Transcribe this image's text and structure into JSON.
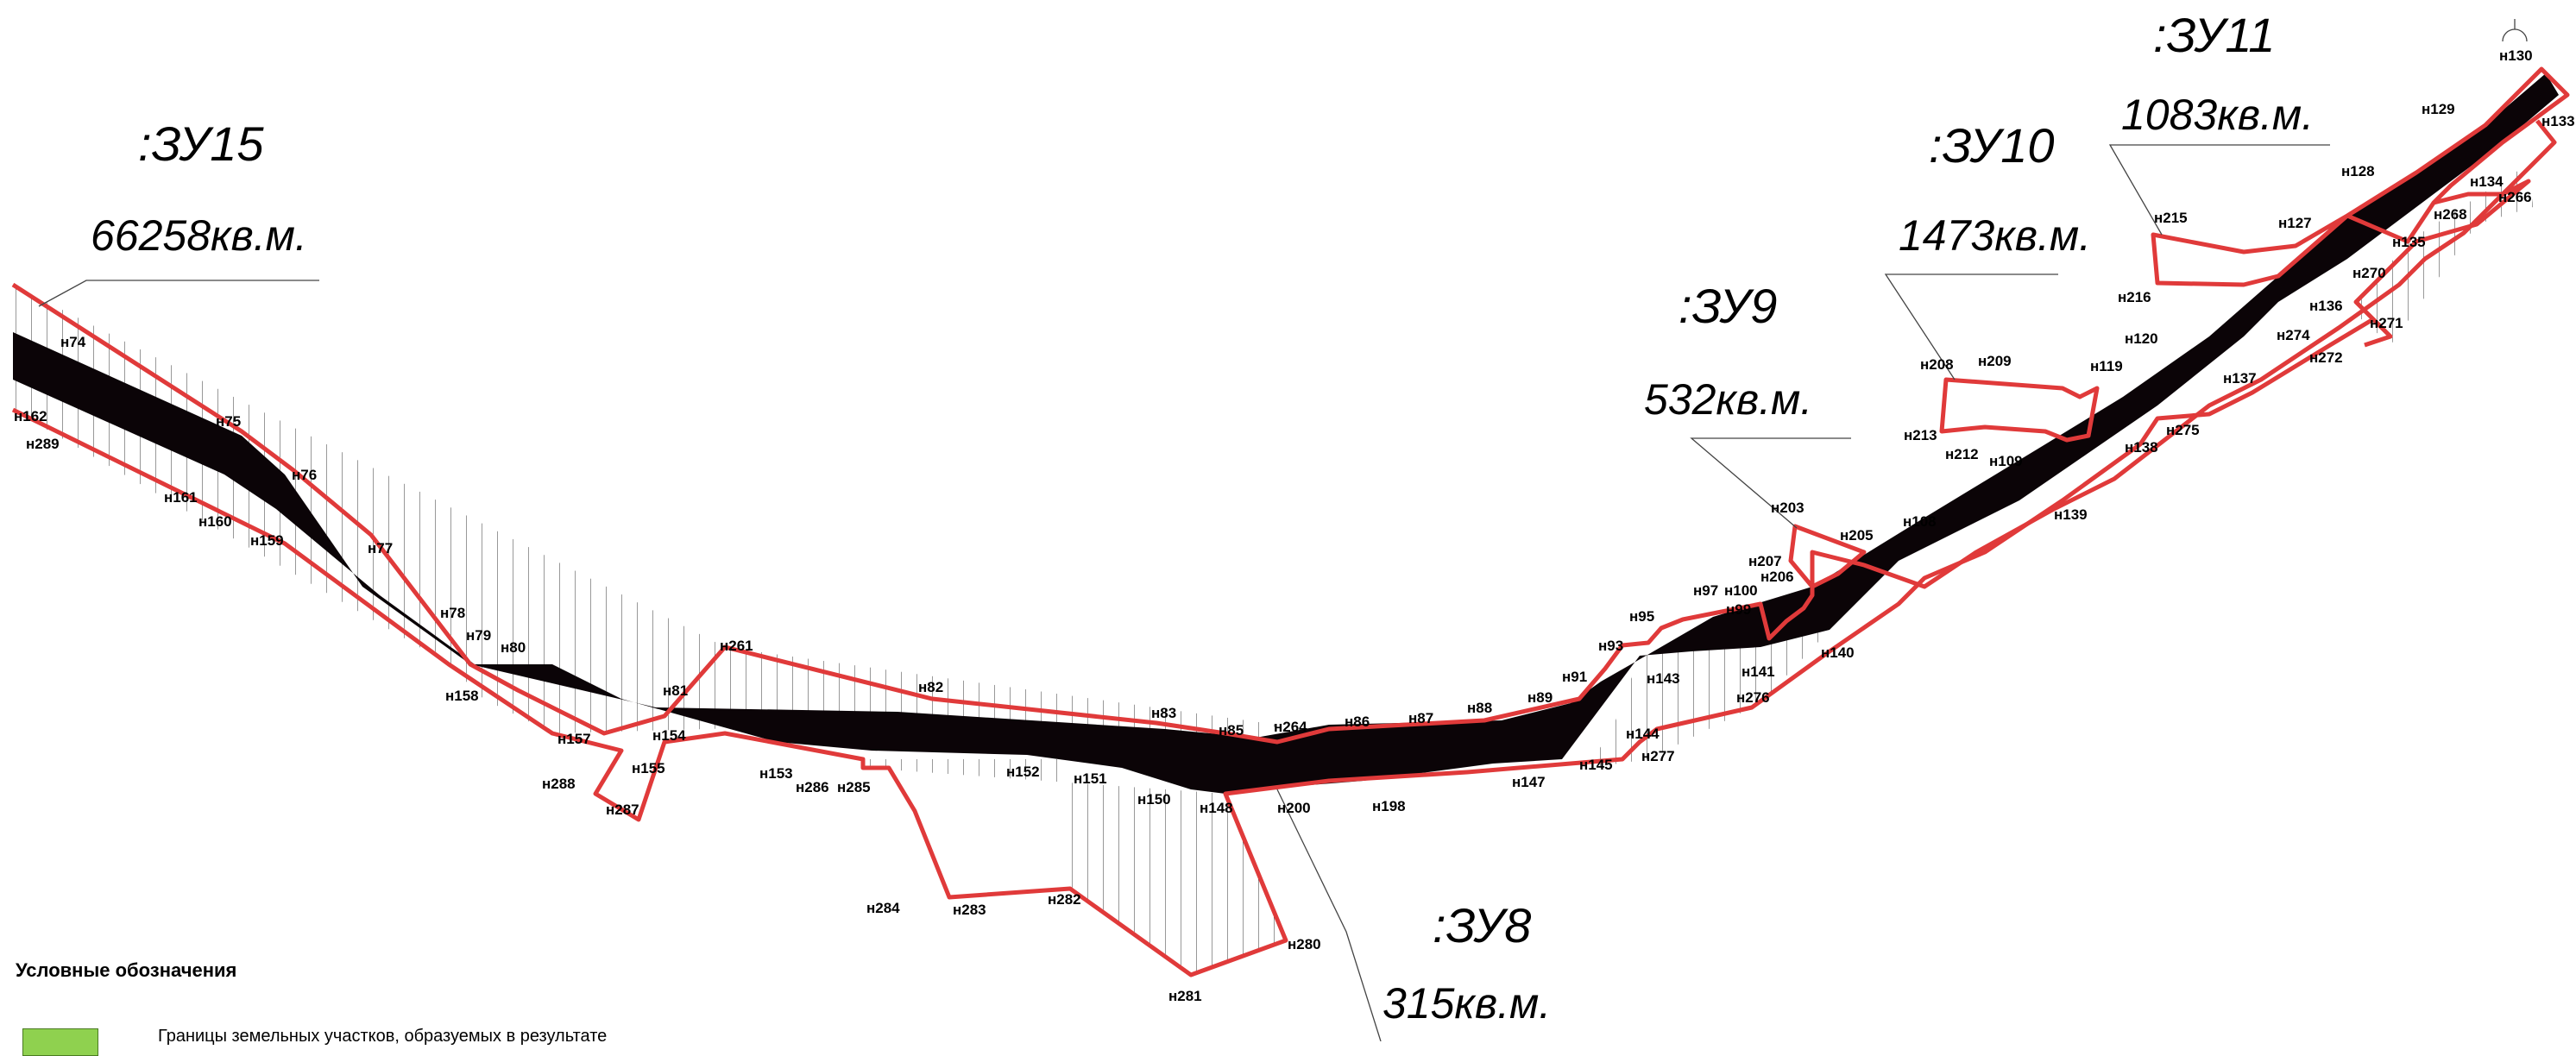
{
  "zones": {
    "zu15": {
      "name": ":ЗУ15",
      "area": "66258кв.м."
    },
    "zu9": {
      "name": ":ЗУ9",
      "area": "532кв.м."
    },
    "zu10": {
      "name": ":ЗУ10",
      "area": "1473кв.м."
    },
    "zu11": {
      "name": ":ЗУ11",
      "area": "1083кв.м."
    },
    "zu8": {
      "name": ":ЗУ8",
      "area": "315кв.м."
    }
  },
  "points": {
    "n74": "н74",
    "n75": "н75",
    "n76": "н76",
    "n77": "н77",
    "n78": "н78",
    "n79": "н79",
    "n80": "н80",
    "n81": "н81",
    "n82": "н82",
    "n83": "н83",
    "n85": "н85",
    "n86": "н86",
    "n87": "н87",
    "n88": "н88",
    "n89": "н89",
    "n91": "н91",
    "n93": "н93",
    "n95": "н95",
    "n97": "н97",
    "n99": "н99",
    "n100": "н100",
    "n108": "н108",
    "n109": "н109",
    "n119": "н119",
    "n120": "н120",
    "n127": "н127",
    "n128": "н128",
    "n129": "н129",
    "n130": "н130",
    "n133": "н133",
    "n134": "н134",
    "n135": "н135",
    "n136": "н136",
    "n137": "н137",
    "n138": "н138",
    "n139": "н139",
    "n140": "н140",
    "n141": "н141",
    "n143": "н143",
    "n144": "н144",
    "n145": "н145",
    "n147": "н147",
    "n148": "н148",
    "n150": "н150",
    "n151": "н151",
    "n152": "н152",
    "n153": "н153",
    "n154": "н154",
    "n155": "н155",
    "n157": "н157",
    "n158": "н158",
    "n159": "н159",
    "n160": "н160",
    "n161": "н161",
    "n162": "н162",
    "n198": "н198",
    "n200": "н200",
    "n203": "н203",
    "n205": "н205",
    "n206": "н206",
    "n207": "н207",
    "n208": "н208",
    "n209": "н209",
    "n212": "н212",
    "n213": "н213",
    "n215": "н215",
    "n216": "н216",
    "n261": "н261",
    "n264": "н264",
    "n266": "н266",
    "n268": "н268",
    "n270": "н270",
    "n271": "н271",
    "n272": "н272",
    "n274": "н274",
    "n275": "н275",
    "n276": "н276",
    "n277": "н277",
    "n280": "н280",
    "n281": "н281",
    "n282": "н282",
    "n283": "н283",
    "n284": "н284",
    "n285": "н285",
    "n286": "н286",
    "n287": "н287",
    "n288": "н288",
    "n289": "н289"
  },
  "legend": {
    "title": "Условные обозначения",
    "item_text": "Границы земельных участков, образуемых в результате",
    "swatch_color": "#8fd14f"
  },
  "colors": {
    "boundary": "#e03a3a",
    "road": "#0b0407",
    "hatch": "#555555"
  }
}
